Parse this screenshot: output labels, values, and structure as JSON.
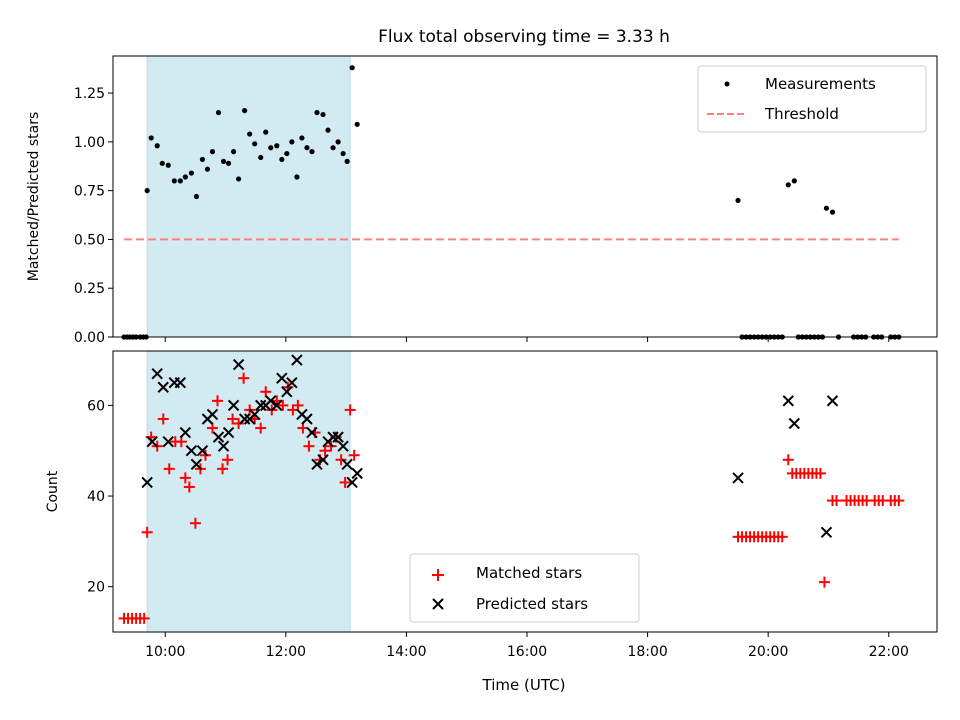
{
  "chart_data": [
    {
      "type": "scatter",
      "title": "Flux total observing time = 3.33 h",
      "ylabel": "Matched/Predicted stars",
      "xlabel": "",
      "ylim": [
        0,
        1.44
      ],
      "xlim": [
        "09:40",
        "22:45"
      ],
      "yticks": [
        "0.00",
        "0.25",
        "0.50",
        "0.75",
        "1.00",
        "1.25"
      ],
      "shaded_span": {
        "start": "09:42",
        "end": "13:04",
        "color": "#add8e6"
      },
      "legend_placement": "top-right",
      "series": [
        {
          "name": "Measurements",
          "marker": "dot",
          "color": "#000000",
          "points": [
            [
              "09:19",
              0
            ],
            [
              "09:22",
              0
            ],
            [
              "09:25",
              0
            ],
            [
              "09:28",
              0
            ],
            [
              "09:31",
              0
            ],
            [
              "09:35",
              0
            ],
            [
              "09:38",
              0
            ],
            [
              "09:41",
              0
            ],
            [
              "09:42",
              0.75
            ],
            [
              "09:46",
              1.02
            ],
            [
              "09:52",
              0.98
            ],
            [
              "09:57",
              0.89
            ],
            [
              "10:03",
              0.88
            ],
            [
              "10:09",
              0.8
            ],
            [
              "10:15",
              0.8
            ],
            [
              "10:20",
              0.82
            ],
            [
              "10:26",
              0.84
            ],
            [
              "10:31",
              0.72
            ],
            [
              "10:37",
              0.91
            ],
            [
              "10:42",
              0.86
            ],
            [
              "10:47",
              0.95
            ],
            [
              "10:53",
              1.15
            ],
            [
              "10:58",
              0.9
            ],
            [
              "11:03",
              0.89
            ],
            [
              "11:08",
              0.95
            ],
            [
              "11:13",
              0.81
            ],
            [
              "11:19",
              1.16
            ],
            [
              "11:24",
              1.04
            ],
            [
              "11:29",
              0.99
            ],
            [
              "11:35",
              0.92
            ],
            [
              "11:40",
              1.05
            ],
            [
              "11:45",
              0.97
            ],
            [
              "11:51",
              0.98
            ],
            [
              "11:56",
              0.91
            ],
            [
              "12:01",
              0.94
            ],
            [
              "12:06",
              1.0
            ],
            [
              "12:11",
              0.82
            ],
            [
              "12:16",
              1.02
            ],
            [
              "12:21",
              0.97
            ],
            [
              "12:26",
              0.95
            ],
            [
              "12:31",
              1.15
            ],
            [
              "12:37",
              1.14
            ],
            [
              "12:42",
              1.06
            ],
            [
              "12:47",
              0.97
            ],
            [
              "12:52",
              1.0
            ],
            [
              "12:57",
              0.94
            ],
            [
              "13:01",
              0.9
            ],
            [
              "13:06",
              1.38
            ],
            [
              "13:11",
              1.09
            ],
            [
              "19:30",
              0.7
            ],
            [
              "19:34",
              0
            ],
            [
              "19:38",
              0
            ],
            [
              "19:42",
              0
            ],
            [
              "19:46",
              0
            ],
            [
              "19:50",
              0
            ],
            [
              "19:54",
              0
            ],
            [
              "19:58",
              0
            ],
            [
              "20:02",
              0
            ],
            [
              "20:06",
              0
            ],
            [
              "20:10",
              0
            ],
            [
              "20:14",
              0
            ],
            [
              "20:20",
              0.78
            ],
            [
              "20:26",
              0.8
            ],
            [
              "20:30",
              0
            ],
            [
              "20:34",
              0
            ],
            [
              "20:38",
              0
            ],
            [
              "20:42",
              0
            ],
            [
              "20:46",
              0
            ],
            [
              "20:50",
              0
            ],
            [
              "20:54",
              0
            ],
            [
              "20:58",
              0.66
            ],
            [
              "21:04",
              0.64
            ],
            [
              "21:10",
              0
            ],
            [
              "21:25",
              0
            ],
            [
              "21:29",
              0
            ],
            [
              "21:33",
              0
            ],
            [
              "21:37",
              0
            ],
            [
              "21:45",
              0
            ],
            [
              "21:49",
              0
            ],
            [
              "21:53",
              0
            ],
            [
              "22:02",
              0
            ],
            [
              "22:06",
              0
            ],
            [
              "22:10",
              0
            ]
          ]
        },
        {
          "name": "Threshold",
          "type": "line",
          "style": "dashed",
          "color": "#ff7f7f",
          "points": [
            [
              "09:19",
              0.5
            ],
            [
              "22:10",
              0.5
            ]
          ]
        }
      ]
    },
    {
      "type": "scatter",
      "title": "",
      "ylabel": "Count",
      "xlabel": "Time (UTC)",
      "ylim": [
        10,
        72
      ],
      "yticks": [
        "20",
        "40",
        "60"
      ],
      "xticks": [
        "10:00",
        "12:00",
        "14:00",
        "16:00",
        "18:00",
        "20:00",
        "22:00"
      ],
      "shaded_span": {
        "start": "09:42",
        "end": "13:04",
        "color": "#add8e6"
      },
      "legend_placement": "bottom-center",
      "series": [
        {
          "name": "Matched stars",
          "marker": "plus",
          "color": "#ff0000",
          "points": [
            [
              "09:19",
              13
            ],
            [
              "09:23",
              13
            ],
            [
              "09:27",
              13
            ],
            [
              "09:31",
              13
            ],
            [
              "09:35",
              13
            ],
            [
              "09:39",
              13
            ],
            [
              "09:42",
              32
            ],
            [
              "09:46",
              53
            ],
            [
              "09:52",
              51
            ],
            [
              "09:58",
              57
            ],
            [
              "10:04",
              46
            ],
            [
              "10:10",
              52
            ],
            [
              "10:16",
              52
            ],
            [
              "10:20",
              44
            ],
            [
              "10:24",
              42
            ],
            [
              "10:30",
              34
            ],
            [
              "10:35",
              46
            ],
            [
              "10:40",
              49
            ],
            [
              "10:47",
              55
            ],
            [
              "10:52",
              61
            ],
            [
              "10:57",
              46
            ],
            [
              "11:02",
              48
            ],
            [
              "11:07",
              57
            ],
            [
              "11:13",
              56
            ],
            [
              "11:18",
              66
            ],
            [
              "11:24",
              59
            ],
            [
              "11:29",
              57
            ],
            [
              "11:35",
              55
            ],
            [
              "11:40",
              63
            ],
            [
              "11:46",
              59
            ],
            [
              "11:51",
              61
            ],
            [
              "11:57",
              60
            ],
            [
              "12:02",
              64
            ],
            [
              "12:07",
              59
            ],
            [
              "12:12",
              60
            ],
            [
              "12:17",
              55
            ],
            [
              "12:23",
              51
            ],
            [
              "12:29",
              54
            ],
            [
              "12:34",
              48
            ],
            [
              "12:39",
              50
            ],
            [
              "12:45",
              51
            ],
            [
              "12:50",
              53
            ],
            [
              "12:55",
              48
            ],
            [
              "12:59",
              43
            ],
            [
              "13:04",
              59
            ],
            [
              "13:08",
              49
            ],
            [
              "19:30",
              31
            ],
            [
              "19:34",
              31
            ],
            [
              "19:38",
              31
            ],
            [
              "19:42",
              31
            ],
            [
              "19:46",
              31
            ],
            [
              "19:50",
              31
            ],
            [
              "19:54",
              31
            ],
            [
              "19:58",
              31
            ],
            [
              "20:02",
              31
            ],
            [
              "20:06",
              31
            ],
            [
              "20:10",
              31
            ],
            [
              "20:14",
              31
            ],
            [
              "20:20",
              48
            ],
            [
              "20:24",
              45
            ],
            [
              "20:28",
              45
            ],
            [
              "20:32",
              45
            ],
            [
              "20:36",
              45
            ],
            [
              "20:40",
              45
            ],
            [
              "20:44",
              45
            ],
            [
              "20:48",
              45
            ],
            [
              "20:52",
              45
            ],
            [
              "20:56",
              21
            ],
            [
              "21:04",
              39
            ],
            [
              "21:08",
              39
            ],
            [
              "21:18",
              39
            ],
            [
              "21:22",
              39
            ],
            [
              "21:26",
              39
            ],
            [
              "21:30",
              39
            ],
            [
              "21:34",
              39
            ],
            [
              "21:38",
              39
            ],
            [
              "21:46",
              39
            ],
            [
              "21:50",
              39
            ],
            [
              "21:54",
              39
            ],
            [
              "22:02",
              39
            ],
            [
              "22:06",
              39
            ],
            [
              "22:10",
              39
            ]
          ]
        },
        {
          "name": "Predicted stars",
          "marker": "x",
          "color": "#000000",
          "points": [
            [
              "09:42",
              43
            ],
            [
              "09:47",
              52
            ],
            [
              "09:52",
              67
            ],
            [
              "09:58",
              64
            ],
            [
              "10:03",
              52
            ],
            [
              "10:09",
              65
            ],
            [
              "10:15",
              65
            ],
            [
              "10:20",
              54
            ],
            [
              "10:26",
              50
            ],
            [
              "10:31",
              47
            ],
            [
              "10:37",
              50
            ],
            [
              "10:42",
              57
            ],
            [
              "10:47",
              58
            ],
            [
              "10:53",
              53
            ],
            [
              "10:58",
              51
            ],
            [
              "11:03",
              54
            ],
            [
              "11:08",
              60
            ],
            [
              "11:13",
              69
            ],
            [
              "11:19",
              57
            ],
            [
              "11:24",
              57
            ],
            [
              "11:29",
              58
            ],
            [
              "11:35",
              60
            ],
            [
              "11:40",
              60
            ],
            [
              "11:45",
              61
            ],
            [
              "11:51",
              60
            ],
            [
              "11:56",
              66
            ],
            [
              "12:01",
              63
            ],
            [
              "12:06",
              65
            ],
            [
              "12:11",
              70
            ],
            [
              "12:16",
              58
            ],
            [
              "12:21",
              57
            ],
            [
              "12:26",
              54
            ],
            [
              "12:31",
              47
            ],
            [
              "12:37",
              48
            ],
            [
              "12:42",
              52
            ],
            [
              "12:47",
              53
            ],
            [
              "12:52",
              53
            ],
            [
              "12:57",
              51
            ],
            [
              "13:01",
              47
            ],
            [
              "13:06",
              43
            ],
            [
              "13:11",
              45
            ],
            [
              "19:30",
              44
            ],
            [
              "20:20",
              61
            ],
            [
              "20:26",
              56
            ],
            [
              "20:58",
              32
            ],
            [
              "21:04",
              61
            ]
          ]
        }
      ]
    }
  ]
}
